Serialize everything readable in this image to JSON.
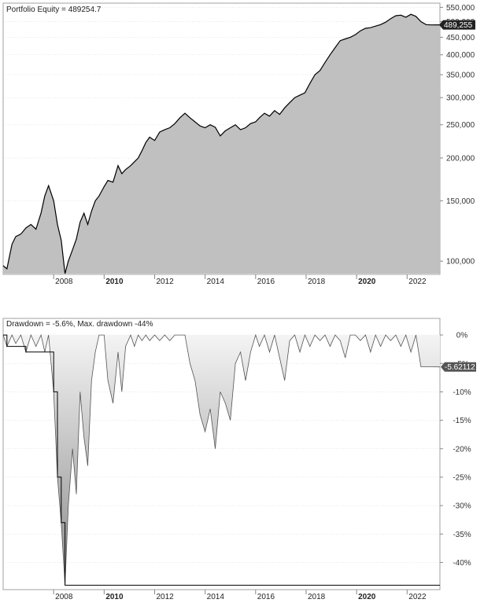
{
  "chart_data": [
    {
      "type": "area",
      "title": "Portfolio Equity = 489254.7",
      "y_scale": "log",
      "ylim": [
        92000,
        560000
      ],
      "xlim": [
        2006.0,
        2023.3
      ],
      "last_value_label": "489,255",
      "y_ticks": [
        {
          "value": 550000,
          "label": "550,000"
        },
        {
          "value": 500000,
          "label": "500,000"
        },
        {
          "value": 450000,
          "label": "450,000"
        },
        {
          "value": 400000,
          "label": "400,000"
        },
        {
          "value": 350000,
          "label": "350,000"
        },
        {
          "value": 300000,
          "label": "300,000"
        },
        {
          "value": 250000,
          "label": "250,000"
        },
        {
          "value": 200000,
          "label": "200,000"
        },
        {
          "value": 150000,
          "label": "150,000"
        },
        {
          "value": 100000,
          "label": "100,000"
        }
      ],
      "x": [
        2006.0,
        2006.15,
        2006.35,
        2006.5,
        2006.7,
        2006.9,
        2007.1,
        2007.3,
        2007.5,
        2007.65,
        2007.8,
        2008.0,
        2008.15,
        2008.3,
        2008.45,
        2008.58,
        2008.75,
        2008.9,
        2009.05,
        2009.2,
        2009.35,
        2009.5,
        2009.65,
        2009.8,
        2010.0,
        2010.15,
        2010.35,
        2010.55,
        2010.7,
        2010.85,
        2011.05,
        2011.2,
        2011.35,
        2011.5,
        2011.65,
        2011.8,
        2012.0,
        2012.2,
        2012.4,
        2012.6,
        2012.8,
        2013.0,
        2013.2,
        2013.4,
        2013.6,
        2013.8,
        2014.0,
        2014.2,
        2014.4,
        2014.6,
        2014.8,
        2015.0,
        2015.2,
        2015.4,
        2015.6,
        2015.8,
        2016.0,
        2016.15,
        2016.35,
        2016.55,
        2016.75,
        2016.95,
        2017.15,
        2017.35,
        2017.55,
        2017.75,
        2017.95,
        2018.15,
        2018.35,
        2018.55,
        2018.75,
        2018.95,
        2019.15,
        2019.35,
        2019.55,
        2019.75,
        2019.95,
        2020.15,
        2020.35,
        2020.55,
        2020.75,
        2020.95,
        2021.15,
        2021.35,
        2021.55,
        2021.75,
        2021.95,
        2022.15,
        2022.35,
        2022.55,
        2022.75,
        2022.95,
        2023.3
      ],
      "equity": [
        97000,
        95000,
        112000,
        118000,
        120000,
        125000,
        128000,
        124000,
        138000,
        155000,
        166000,
        150000,
        128000,
        115000,
        92000,
        100000,
        108000,
        116000,
        130000,
        138000,
        128000,
        140000,
        150000,
        155000,
        165000,
        172000,
        170000,
        190000,
        180000,
        185000,
        190000,
        195000,
        200000,
        210000,
        222000,
        230000,
        225000,
        238000,
        242000,
        245000,
        252000,
        262000,
        270000,
        262000,
        255000,
        248000,
        245000,
        250000,
        246000,
        232000,
        240000,
        245000,
        250000,
        242000,
        245000,
        252000,
        255000,
        262000,
        270000,
        265000,
        275000,
        268000,
        280000,
        290000,
        300000,
        305000,
        310000,
        330000,
        350000,
        360000,
        380000,
        400000,
        420000,
        440000,
        445000,
        450000,
        458000,
        470000,
        478000,
        480000,
        485000,
        490000,
        498000,
        510000,
        520000,
        522000,
        515000,
        525000,
        518000,
        500000,
        490000,
        489000,
        489255
      ],
      "series": [
        {
          "name": "Equity"
        }
      ]
    },
    {
      "type": "area",
      "title": "Drawdown = -5.6%, Max. drawdown -44%",
      "ylim": [
        -44.5,
        2.5
      ],
      "xlim": [
        2006.0,
        2023.3
      ],
      "last_value_label": "-5.62112",
      "y_ticks": [
        {
          "value": 0,
          "label": "0%"
        },
        {
          "value": -5,
          "label": "-5%"
        },
        {
          "value": -10,
          "label": "-10%"
        },
        {
          "value": -15,
          "label": "-15%"
        },
        {
          "value": -20,
          "label": "-20%"
        },
        {
          "value": -25,
          "label": "-25%"
        },
        {
          "value": -30,
          "label": "-30%"
        },
        {
          "value": -35,
          "label": "-35%"
        },
        {
          "value": -40,
          "label": "-40%"
        }
      ],
      "x": [
        2006.0,
        2006.15,
        2006.35,
        2006.5,
        2006.7,
        2006.9,
        2007.1,
        2007.3,
        2007.5,
        2007.65,
        2007.8,
        2008.0,
        2008.15,
        2008.3,
        2008.45,
        2008.58,
        2008.75,
        2008.9,
        2009.05,
        2009.2,
        2009.35,
        2009.5,
        2009.65,
        2009.8,
        2010.0,
        2010.15,
        2010.35,
        2010.55,
        2010.7,
        2010.85,
        2011.05,
        2011.2,
        2011.35,
        2011.5,
        2011.65,
        2011.8,
        2012.0,
        2012.2,
        2012.4,
        2012.6,
        2012.8,
        2013.0,
        2013.2,
        2013.4,
        2013.6,
        2013.8,
        2014.0,
        2014.2,
        2014.4,
        2014.6,
        2014.8,
        2015.0,
        2015.2,
        2015.4,
        2015.6,
        2015.8,
        2016.0,
        2016.15,
        2016.35,
        2016.55,
        2016.75,
        2016.95,
        2017.15,
        2017.35,
        2017.55,
        2017.75,
        2017.95,
        2018.15,
        2018.35,
        2018.55,
        2018.75,
        2018.95,
        2019.15,
        2019.35,
        2019.55,
        2019.75,
        2019.95,
        2020.15,
        2020.35,
        2020.55,
        2020.75,
        2020.95,
        2021.15,
        2021.35,
        2021.55,
        2021.75,
        2021.95,
        2022.15,
        2022.35,
        2022.55,
        2022.75,
        2022.95,
        2023.3
      ],
      "drawdown": [
        0,
        -2,
        0,
        -1.5,
        0,
        -3,
        0,
        -2,
        0,
        -3,
        0,
        -10,
        -25,
        -33,
        -44,
        -30,
        -20,
        -28,
        -10,
        -18,
        -23,
        -8,
        -3,
        0,
        0,
        -8,
        -12,
        -3,
        -10,
        -2,
        0,
        -2,
        0,
        -1,
        0,
        -1,
        0,
        -1,
        0,
        -1,
        0,
        0,
        0,
        -5,
        -8,
        -14,
        -17,
        -13,
        -20,
        -10,
        -12,
        -15,
        -5,
        -3,
        -8,
        -3,
        0,
        -2,
        0,
        -3,
        0,
        -4,
        -8,
        -1,
        0,
        -3,
        0,
        -2,
        0,
        -1,
        0,
        -2,
        0,
        -1,
        -4,
        0,
        0,
        -1,
        0,
        -3,
        0,
        -2,
        0,
        -1,
        0,
        -2,
        0,
        -3,
        0,
        -5.6,
        -5.6,
        -5.6,
        -5.62112
      ],
      "max_drawdown_pct": -44,
      "current_drawdown_pct": -5.6,
      "series": [
        {
          "name": "Drawdown"
        }
      ]
    }
  ],
  "x_axis": {
    "ticks": [
      {
        "value": 2008,
        "label": "2008",
        "bold": false
      },
      {
        "value": 2010,
        "label": "2010",
        "bold": true
      },
      {
        "value": 2012,
        "label": "2012",
        "bold": false
      },
      {
        "value": 2014,
        "label": "2014",
        "bold": false
      },
      {
        "value": 2016,
        "label": "2016",
        "bold": false
      },
      {
        "value": 2018,
        "label": "2018",
        "bold": false
      },
      {
        "value": 2020,
        "label": "2020",
        "bold": true
      },
      {
        "value": 2022,
        "label": "2022",
        "bold": false
      }
    ]
  },
  "colors": {
    "equity_fill": "#c0c0c0",
    "equity_line": "#000000",
    "drawdown_dark": "#8a8a8a",
    "drawdown_light": "#f4f4f4",
    "label_bg": "#222222",
    "dd_label_bg": "#555555",
    "frame": "#a0a0a0",
    "grid": "#cfcfcf"
  }
}
